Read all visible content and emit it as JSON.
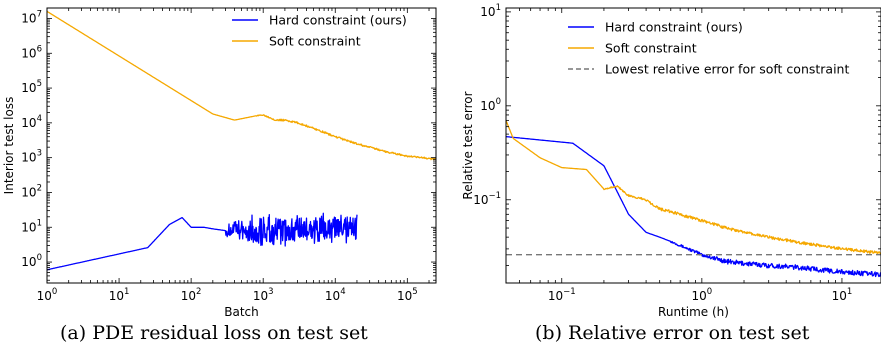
{
  "chart_data": [
    {
      "type": "line",
      "xlabel": "Batch",
      "ylabel": "Interior test loss",
      "xscale": "log",
      "yscale": "log",
      "xlim": [
        1,
        250000
      ],
      "ylim": [
        0.25,
        20000000
      ],
      "x_ticks": [
        1,
        10,
        100,
        1000,
        10000,
        100000
      ],
      "x_tick_labels": [
        [
          "10",
          "0"
        ],
        [
          "10",
          "1"
        ],
        [
          "10",
          "2"
        ],
        [
          "10",
          "3"
        ],
        [
          "10",
          "4"
        ],
        [
          "10",
          "5"
        ]
      ],
      "y_ticks": [
        1,
        10,
        100,
        1000,
        10000,
        100000,
        1000000,
        10000000
      ],
      "y_tick_labels": [
        [
          "10",
          "0"
        ],
        [
          "10",
          "1"
        ],
        [
          "10",
          "2"
        ],
        [
          "10",
          "3"
        ],
        [
          "10",
          "4"
        ],
        [
          "10",
          "5"
        ],
        [
          "10",
          "6"
        ],
        [
          "10",
          "7"
        ]
      ],
      "legend_position": "top-right",
      "grid": false,
      "series": [
        {
          "name": "Hard constraint (ours)",
          "color": "#0000ff",
          "noise_from_x": 300,
          "x": [
            1,
            25,
            50,
            75,
            100,
            150,
            200,
            300,
            500,
            1000,
            2000,
            5000,
            10000,
            20000
          ],
          "y": [
            0.6,
            2.6,
            12,
            19,
            10,
            10,
            9,
            8,
            8,
            8,
            8,
            8,
            8.5,
            9
          ]
        },
        {
          "name": "Soft constraint",
          "color": "#f5a800",
          "noise_from_x": 800,
          "x": [
            1,
            200,
            400,
            800,
            1000,
            1500,
            2000,
            3000,
            5000,
            10000,
            20000,
            50000,
            100000,
            250000
          ],
          "y": [
            16000000,
            18000,
            12000,
            16000,
            17000,
            12000,
            12000,
            10000,
            7000,
            4000,
            2500,
            1500,
            1100,
            900
          ]
        }
      ]
    },
    {
      "type": "line",
      "xlabel": "Runtime (h)",
      "ylabel": "Relative test error",
      "xscale": "log",
      "yscale": "log",
      "xlim": [
        0.04,
        19
      ],
      "ylim": [
        0.013,
        11
      ],
      "x_ticks": [
        0.1,
        1,
        10
      ],
      "x_tick_labels": [
        [
          "10",
          "−1"
        ],
        [
          "10",
          "0"
        ],
        [
          "10",
          "1"
        ]
      ],
      "y_ticks": [
        0.1,
        1,
        10
      ],
      "y_tick_labels": [
        [
          "10",
          "−1"
        ],
        [
          "10",
          "0"
        ],
        [
          "10",
          "1"
        ]
      ],
      "legend_position": "top-right",
      "grid": false,
      "series": [
        {
          "name": "Hard constraint (ours)",
          "color": "#0000ff",
          "noise_from_x": 0.6,
          "x": [
            0.04,
            0.12,
            0.2,
            0.25,
            0.3,
            0.4,
            0.5,
            0.6,
            0.8,
            1,
            1.5,
            2,
            3,
            5,
            10,
            19
          ],
          "y": [
            0.47,
            0.4,
            0.23,
            0.12,
            0.07,
            0.045,
            0.04,
            0.036,
            0.03,
            0.026,
            0.022,
            0.021,
            0.02,
            0.019,
            0.017,
            0.016
          ]
        },
        {
          "name": "Soft constraint",
          "color": "#f5a800",
          "noise_from_x": 0.2,
          "x": [
            0.04,
            0.045,
            0.07,
            0.1,
            0.15,
            0.2,
            0.25,
            0.3,
            0.4,
            0.5,
            0.7,
            1,
            1.5,
            2,
            3,
            5,
            10,
            19
          ],
          "y": [
            0.7,
            0.45,
            0.28,
            0.22,
            0.21,
            0.13,
            0.14,
            0.11,
            0.1,
            0.08,
            0.07,
            0.06,
            0.05,
            0.045,
            0.04,
            0.035,
            0.03,
            0.027
          ]
        },
        {
          "name": "Lowest relative error for soft constraint",
          "color": "#777777",
          "dashed": true,
          "x": [
            0.04,
            19
          ],
          "y": [
            0.026,
            0.026
          ]
        }
      ]
    }
  ],
  "captions": {
    "left": "(a) PDE residual loss on test set",
    "right": "(b) Relative error on test set"
  }
}
